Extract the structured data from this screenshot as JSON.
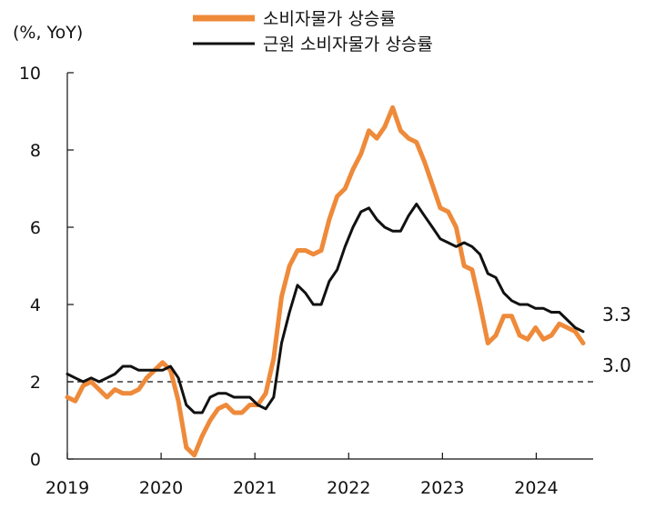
{
  "chart_data": {
    "type": "line",
    "unit_label": "(%, YoY)",
    "ylim": [
      0,
      10
    ],
    "yticks": [
      0,
      2,
      4,
      6,
      8,
      10
    ],
    "xlim": [
      2019.0,
      2024.5
    ],
    "xticks": [
      {
        "label": "2019",
        "value": 2019
      },
      {
        "label": "2020",
        "value": 2020
      },
      {
        "label": "2021",
        "value": 2021
      },
      {
        "label": "2022",
        "value": 2022
      },
      {
        "label": "2023",
        "value": 2023
      },
      {
        "label": "2024",
        "value": 2024
      }
    ],
    "reference_line": {
      "value": 2,
      "style": "dashed"
    },
    "series": [
      {
        "name": "소비자물가 상승률",
        "color": "#ee8a3a",
        "end_label": "3.0",
        "values": [
          1.6,
          1.5,
          1.9,
          2.0,
          1.8,
          1.6,
          1.8,
          1.7,
          1.7,
          1.8,
          2.1,
          2.3,
          2.5,
          2.3,
          1.5,
          0.3,
          0.1,
          0.6,
          1.0,
          1.3,
          1.4,
          1.2,
          1.2,
          1.4,
          1.4,
          1.7,
          2.6,
          4.2,
          5.0,
          5.4,
          5.4,
          5.3,
          5.4,
          6.2,
          6.8,
          7.0,
          7.5,
          7.9,
          8.5,
          8.3,
          8.6,
          9.1,
          8.5,
          8.3,
          8.2,
          7.7,
          7.1,
          6.5,
          6.4,
          6.0,
          5.0,
          4.9,
          4.0,
          3.0,
          3.2,
          3.7,
          3.7,
          3.2,
          3.1,
          3.4,
          3.1,
          3.2,
          3.5,
          3.4,
          3.3,
          3.0
        ]
      },
      {
        "name": "근원 소비자물가 상승률",
        "color": "#111111",
        "end_label": "3.3",
        "values": [
          2.2,
          2.1,
          2.0,
          2.1,
          2.0,
          2.1,
          2.2,
          2.4,
          2.4,
          2.3,
          2.3,
          2.3,
          2.3,
          2.4,
          2.1,
          1.4,
          1.2,
          1.2,
          1.6,
          1.7,
          1.7,
          1.6,
          1.6,
          1.6,
          1.4,
          1.3,
          1.6,
          3.0,
          3.8,
          4.5,
          4.3,
          4.0,
          4.0,
          4.6,
          4.9,
          5.5,
          6.0,
          6.4,
          6.5,
          6.2,
          6.0,
          5.9,
          5.9,
          6.3,
          6.6,
          6.3,
          6.0,
          5.7,
          5.6,
          5.5,
          5.6,
          5.5,
          5.3,
          4.8,
          4.7,
          4.3,
          4.1,
          4.0,
          4.0,
          3.9,
          3.9,
          3.8,
          3.8,
          3.6,
          3.4,
          3.3
        ]
      }
    ]
  }
}
